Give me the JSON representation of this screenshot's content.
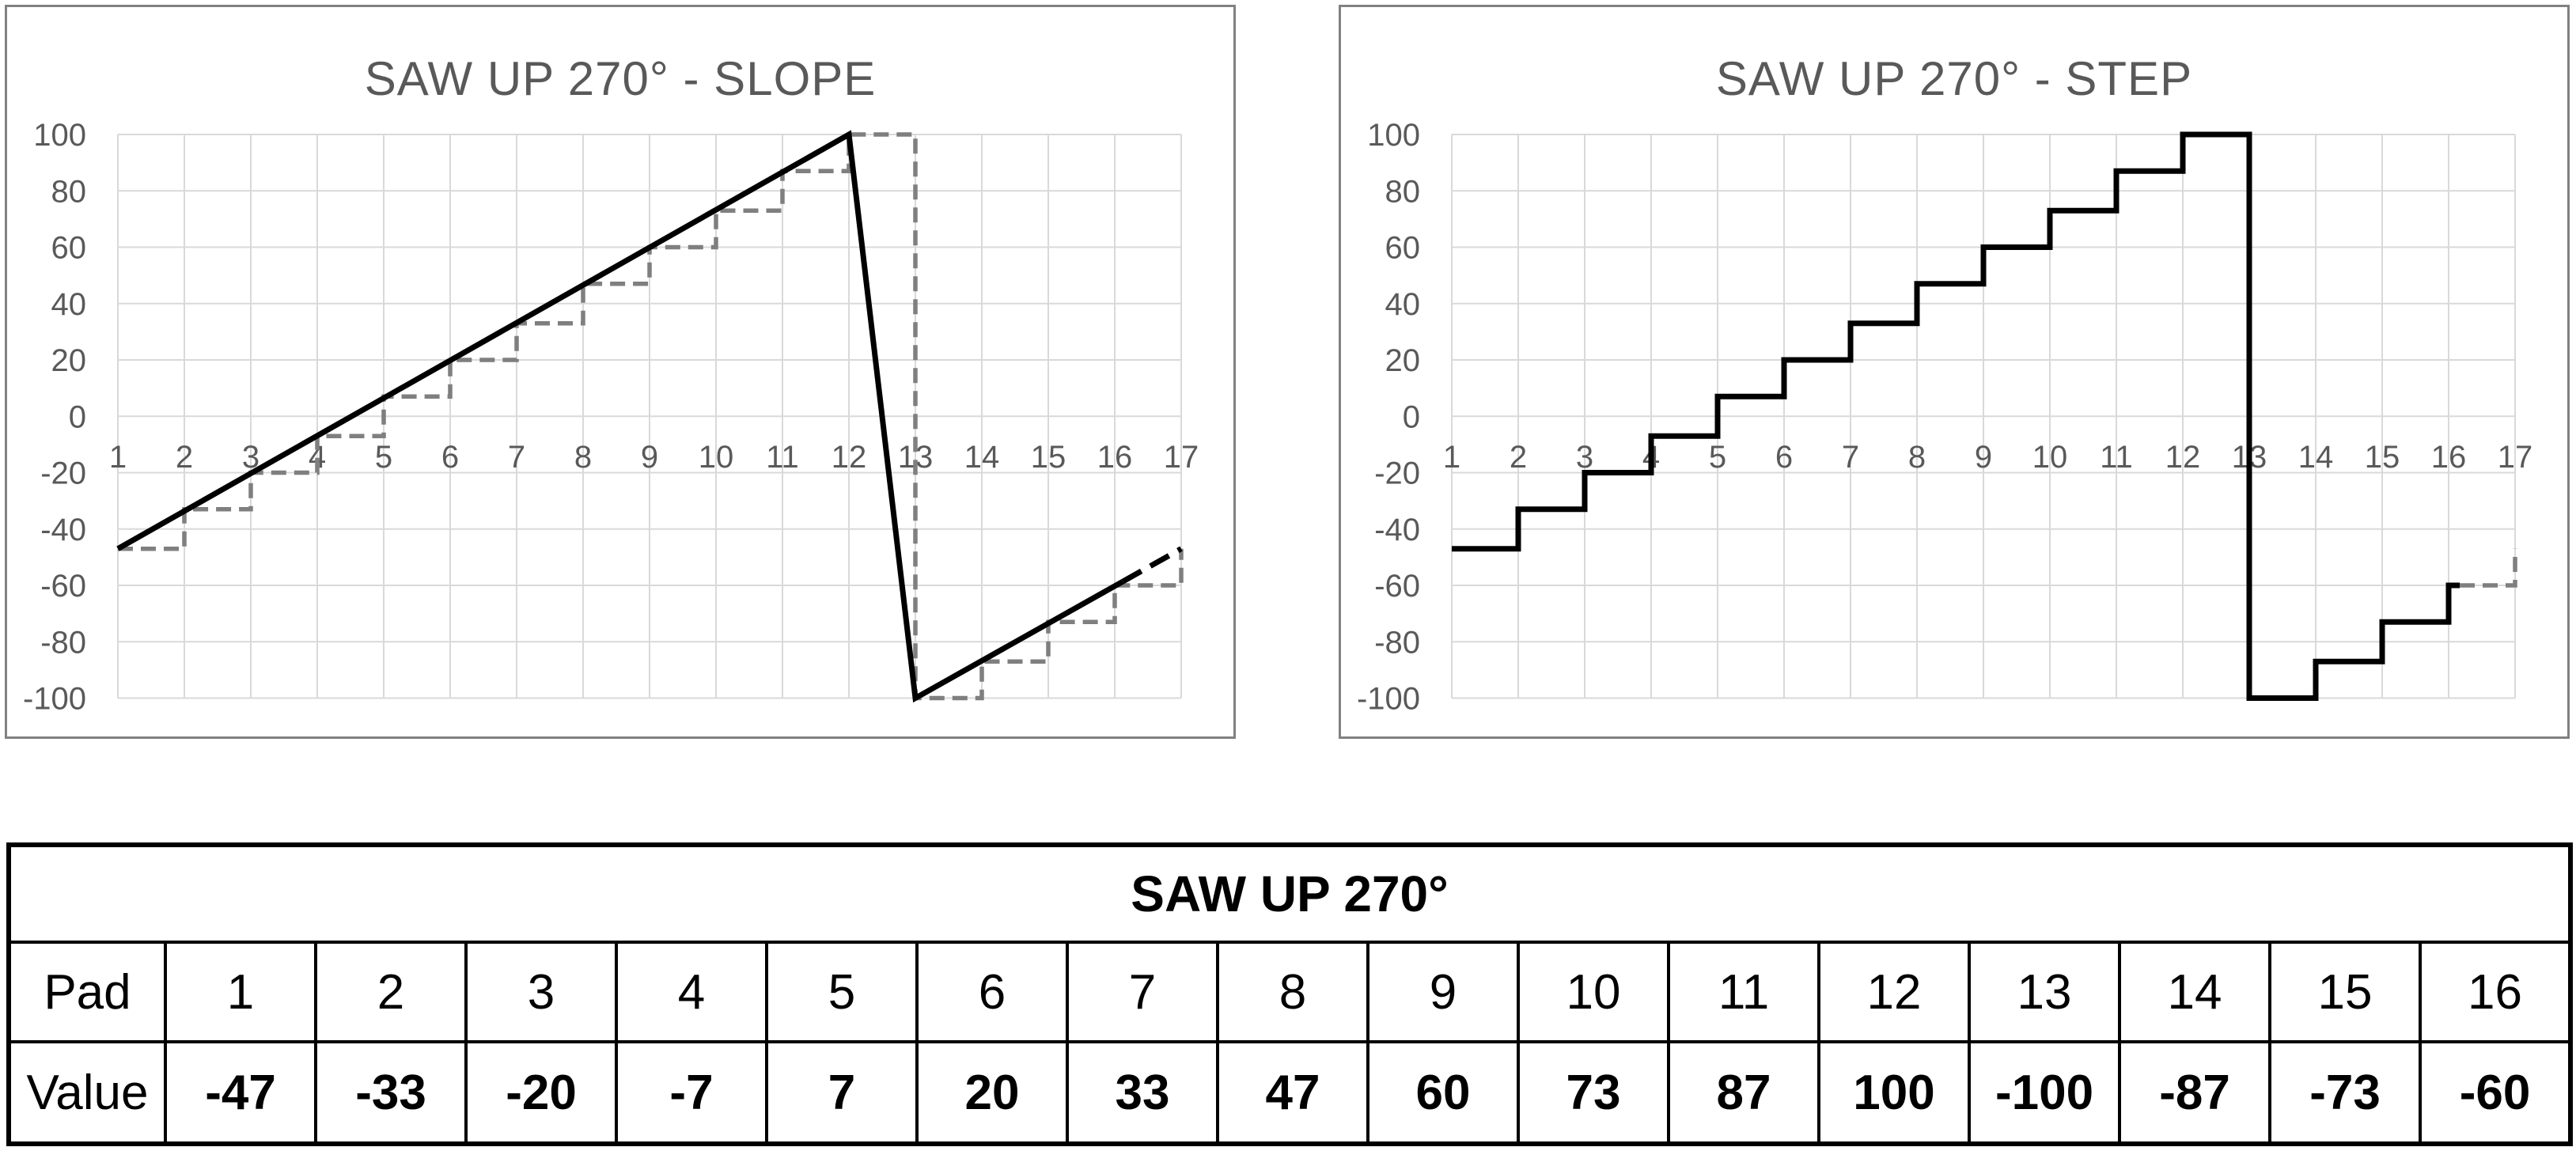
{
  "colors": {
    "grid": "#d9d9d9",
    "axis_text": "#595959",
    "chart_border": "#818181",
    "series_black": "#000000",
    "series_gray": "#7f7f7f",
    "table_border": "#000000"
  },
  "chart_data": [
    {
      "type": "line",
      "title": "SAW UP 270° - SLOPE",
      "x_ticks": [
        "1",
        "2",
        "3",
        "4",
        "5",
        "6",
        "7",
        "8",
        "9",
        "10",
        "11",
        "12",
        "13",
        "14",
        "15",
        "16",
        "17"
      ],
      "y_ticks": [
        "100",
        "80",
        "60",
        "40",
        "20",
        "0",
        "-20",
        "-40",
        "-60",
        "-80",
        "-100"
      ],
      "xlim": [
        1,
        17
      ],
      "ylim": [
        -100,
        100
      ],
      "grid": "light gray, vertical every category, horizontal every 20",
      "legend": "none",
      "series": [
        {
          "name": "quantized-step-overlay",
          "color": "#7f7f7f",
          "style": "dashed-step",
          "values": [
            -47,
            -33,
            -20,
            -7,
            7,
            20,
            33,
            47,
            60,
            73,
            87,
            100,
            -100,
            -87,
            -73,
            -60
          ],
          "next_cycle_start": -47
        },
        {
          "name": "ideal-slope-line",
          "color": "#000000",
          "style": "solid with dashed tail",
          "points": [
            [
              1,
              -47
            ],
            [
              12,
              100
            ],
            [
              13,
              -100
            ],
            [
              17,
              -47
            ]
          ],
          "dashed_tail_from_x": 16.12
        }
      ]
    },
    {
      "type": "step",
      "title": "SAW UP 270° - STEP",
      "x_ticks": [
        "1",
        "2",
        "3",
        "4",
        "5",
        "6",
        "7",
        "8",
        "9",
        "10",
        "11",
        "12",
        "13",
        "14",
        "15",
        "16",
        "17"
      ],
      "y_ticks": [
        "100",
        "80",
        "60",
        "40",
        "20",
        "0",
        "-20",
        "-40",
        "-60",
        "-80",
        "-100"
      ],
      "xlim": [
        1,
        17
      ],
      "ylim": [
        -100,
        100
      ],
      "grid": "light gray, vertical every category, horizontal every 20",
      "legend": "none",
      "series": [
        {
          "name": "quantized-step-line",
          "color": "#000000",
          "style": "solid-step",
          "values": [
            -47,
            -33,
            -20,
            -7,
            7,
            20,
            33,
            47,
            60,
            73,
            87,
            100,
            -100,
            -87,
            -73,
            -60
          ]
        },
        {
          "name": "next-cycle-preview",
          "color": "#7f7f7f",
          "style": "dashed-step-continuation",
          "from": [
            16,
            -60
          ],
          "to": [
            17,
            -47
          ]
        }
      ]
    }
  ],
  "table": {
    "title": "SAW UP 270°",
    "row_headers": [
      "Pad",
      "Value"
    ],
    "pads": [
      "1",
      "2",
      "3",
      "4",
      "5",
      "6",
      "7",
      "8",
      "9",
      "10",
      "11",
      "12",
      "13",
      "14",
      "15",
      "16"
    ],
    "values": [
      "-47",
      "-33",
      "-20",
      "-7",
      "7",
      "20",
      "33",
      "47",
      "60",
      "73",
      "87",
      "100",
      "-100",
      "-87",
      "-73",
      "-60"
    ]
  }
}
